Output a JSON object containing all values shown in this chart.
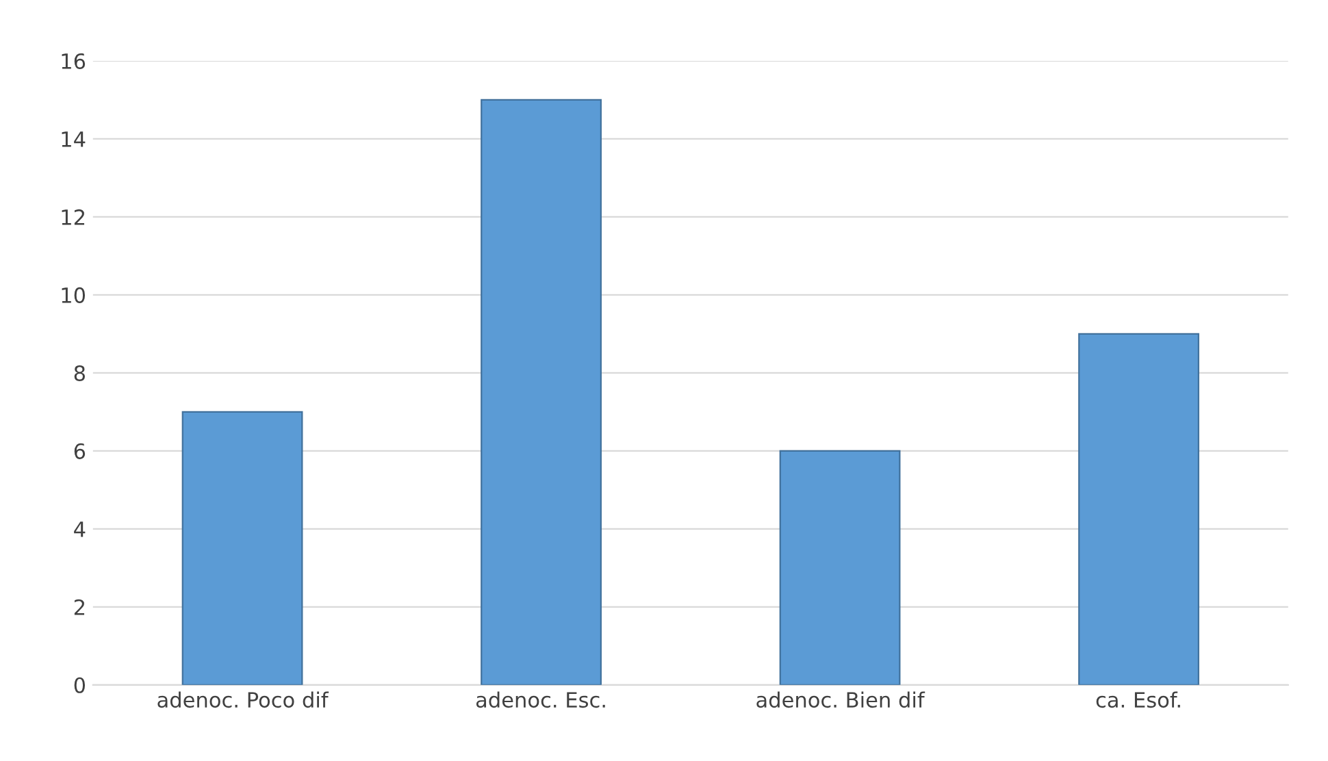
{
  "chart_data": {
    "type": "bar",
    "categories": [
      "adenoc. Poco dif",
      "adenoc. Esc.",
      "adenoc. Bien dif",
      "ca. Esof."
    ],
    "values": [
      7,
      15,
      6,
      9
    ],
    "color": "#5b9bd5",
    "ylim": [
      0,
      16
    ],
    "yticks": [
      0,
      2,
      4,
      6,
      8,
      10,
      12,
      14,
      16
    ],
    "grid": "y",
    "legend": false
  }
}
